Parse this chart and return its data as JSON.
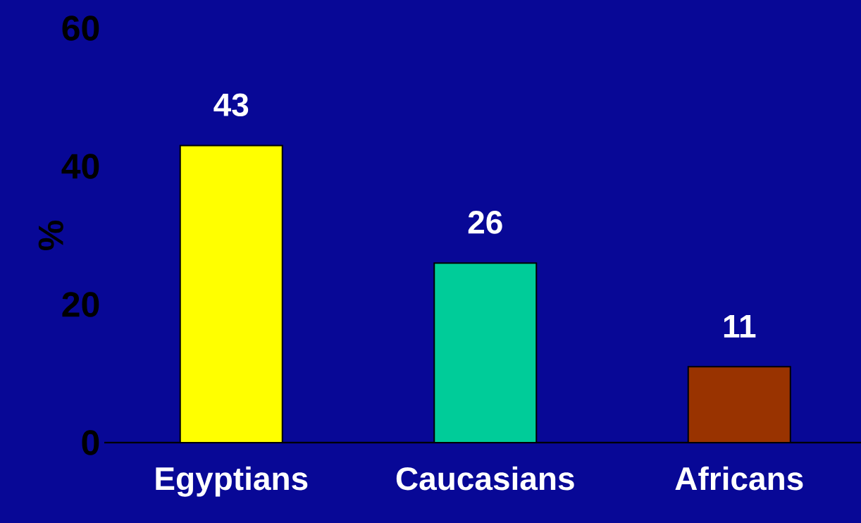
{
  "chart_data": {
    "type": "bar",
    "ylabel": "%",
    "categories": [
      "Egyptians",
      "Caucasians",
      "Africans"
    ],
    "values": [
      43,
      26,
      11
    ],
    "colors": [
      "#ffff00",
      "#00cc99",
      "#993300"
    ],
    "ylim": [
      0,
      60
    ],
    "yticks": [
      0,
      20,
      40,
      60
    ],
    "data_labels": true
  }
}
